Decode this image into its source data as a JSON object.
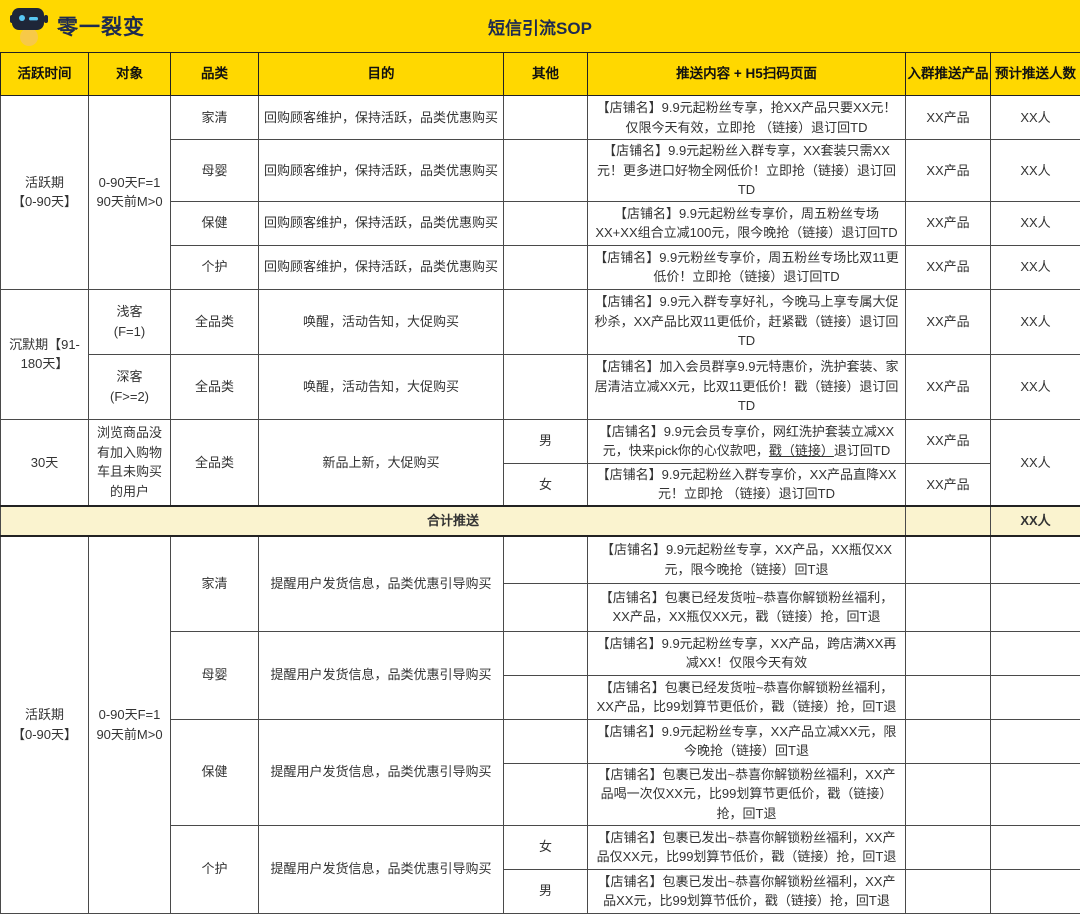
{
  "brand": {
    "name": "零一裂变",
    "logo": "robot-icon"
  },
  "title": "短信引流SOP",
  "colors": {
    "header_yellow": "#FFD800",
    "summary_yellow": "#FAF3CF",
    "brand_text": "#1E2B50"
  },
  "headers": {
    "time": "活跃时间",
    "target": "对象",
    "category": "品类",
    "purpose": "目的",
    "other": "其他",
    "content": "推送内容 + H5扫码页面",
    "product": "入群推送产品",
    "people": "预计推送人数"
  },
  "sectionA": {
    "time": "活跃期\n【0-90天】",
    "target": "0-90天F=1\n90天前M>0",
    "rows": [
      {
        "category": "家清",
        "purpose": "回购顾客维护，保持活跃，品类优惠购买",
        "other": "",
        "content": "【店铺名】9.9元起粉丝专享，抢XX产品只要XX元！仅限今天有效，立即抢 （链接）退订回TD",
        "product": "XX产品",
        "people": "XX人"
      },
      {
        "category": "母婴",
        "purpose": "回购顾客维护，保持活跃，品类优惠购买",
        "other": "",
        "content": "【店铺名】9.9元起粉丝入群专享，XX套装只需XX元！更多进口好物全网低价！立即抢（链接）退订回TD",
        "product": "XX产品",
        "people": "XX人"
      },
      {
        "category": "保健",
        "purpose": "回购顾客维护，保持活跃，品类优惠购买",
        "other": "",
        "content": "【店铺名】9.9元起粉丝专享价，周五粉丝专场XX+XX组合立减100元，限今晚抢（链接）退订回TD",
        "product": "XX产品",
        "people": "XX人"
      },
      {
        "category": "个护",
        "purpose": "回购顾客维护，保持活跃，品类优惠购买",
        "other": "",
        "content": "【店铺名】9.9元粉丝专享价，周五粉丝专场比双11更低价！立即抢（链接）退订回TD",
        "product": "XX产品",
        "people": "XX人"
      }
    ]
  },
  "sectionB": {
    "time": "沉默期【91-180天】",
    "rows": [
      {
        "target": "浅客\n(F=1)",
        "category": "全品类",
        "purpose": "唤醒，活动告知，大促购买",
        "other": "",
        "content": "【店铺名】9.9元入群专享好礼，今晚马上享专属大促秒杀，XX产品比双11更低价，赶紧戳（链接）退订回TD",
        "product": "XX产品",
        "people": "XX人"
      },
      {
        "target": "深客\n(F>=2)",
        "category": "全品类",
        "purpose": "唤醒，活动告知，大促购买",
        "other": "",
        "content": "【店铺名】加入会员群享9.9元特惠价，洗护套装、家居清洁立减XX元，比双11更低价！戳（链接）退订回TD",
        "product": "XX产品",
        "people": "XX人"
      }
    ]
  },
  "sectionC": {
    "time": "30天",
    "target": "浏览商品没有加入购物车且未购买的用户",
    "category": "全品类",
    "purpose": "新品上新，大促购买",
    "people": "XX人",
    "rows": [
      {
        "other": "男",
        "content": "【店铺名】9.9元会员专享价，网红洗护套装立减XX元，快来pick你的心仪款吧，戳（链接）退订回TD",
        "underline": "戳（链接）",
        "product": "XX产品"
      },
      {
        "other": "女",
        "content": "【店铺名】9.9元起粉丝入群专享价，XX产品直降XX元！立即抢 （链接）退订回TD",
        "product": "XX产品"
      }
    ]
  },
  "summaryRow": {
    "label": "合计推送",
    "people": "XX人"
  },
  "sectionD": {
    "time": "活跃期\n【0-90天】",
    "target": "0-90天F=1\n90天前M>0",
    "groups": [
      {
        "category": "家清",
        "purpose": "提醒用户发货信息，品类优惠引导购买",
        "rows": [
          {
            "other": "",
            "content": "【店铺名】9.9元起粉丝专享，XX产品，XX瓶仅XX元，限今晚抢（链接）回T退"
          },
          {
            "other": "",
            "content": "【店铺名】包裹已经发货啦~恭喜你解锁粉丝福利，XX产品，XX瓶仅XX元，戳（链接）抢，回T退"
          }
        ]
      },
      {
        "category": "母婴",
        "purpose": "提醒用户发货信息，品类优惠引导购买",
        "rows": [
          {
            "other": "",
            "content": "【店铺名】9.9元起粉丝专享，XX产品，跨店满XX再减XX！仅限今天有效"
          },
          {
            "other": "",
            "content": "【店铺名】包裹已经发货啦~恭喜你解锁粉丝福利，XX产品，比99划算节更低价，戳（链接）抢，回T退"
          }
        ]
      },
      {
        "category": "保健",
        "purpose": "提醒用户发货信息，品类优惠引导购买",
        "rows": [
          {
            "other": "",
            "content": "【店铺名】9.9元起粉丝专享，XX产品立减XX元，限今晚抢（链接）回T退"
          },
          {
            "other": "",
            "content": "【店铺名】包裹已发出~恭喜你解锁粉丝福利，XX产品喝一次仅XX元，比99划算节更低价，戳（链接）抢，回T退"
          }
        ]
      },
      {
        "category": "个护",
        "purpose": "提醒用户发货信息，品类优惠引导购买",
        "rows": [
          {
            "other": "女",
            "content": "【店铺名】包裹已发出~恭喜你解锁粉丝福利，XX产品仅XX元，比99划算节低价，戳（链接）抢，回T退"
          },
          {
            "other": "男",
            "content": "【店铺名】包裹已发出~恭喜你解锁粉丝福利，XX产品XX元，比99划算节低价，戳（链接）抢，回T退"
          }
        ]
      }
    ]
  }
}
